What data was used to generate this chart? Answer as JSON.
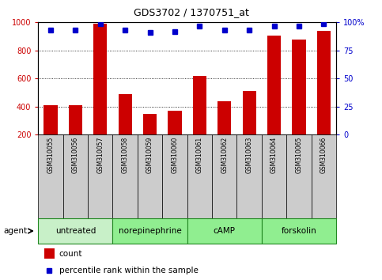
{
  "title": "GDS3702 / 1370751_at",
  "samples": [
    "GSM310055",
    "GSM310056",
    "GSM310057",
    "GSM310058",
    "GSM310059",
    "GSM310060",
    "GSM310061",
    "GSM310062",
    "GSM310063",
    "GSM310064",
    "GSM310065",
    "GSM310066"
  ],
  "counts": [
    410,
    410,
    990,
    490,
    348,
    368,
    615,
    435,
    510,
    905,
    875,
    940
  ],
  "percentile_ranks": [
    93,
    93,
    99,
    93,
    91,
    92,
    97,
    93,
    93,
    97,
    97,
    99
  ],
  "groups": [
    {
      "label": "untreated",
      "start": 0,
      "end": 3,
      "color": "#c8f0c8"
    },
    {
      "label": "norepinephrine",
      "start": 3,
      "end": 6,
      "color": "#90ee90"
    },
    {
      "label": "cAMP",
      "start": 6,
      "end": 9,
      "color": "#90ee90"
    },
    {
      "label": "forskolin",
      "start": 9,
      "end": 12,
      "color": "#90ee90"
    }
  ],
  "bar_color": "#cc0000",
  "dot_color": "#0000cc",
  "ylim_left": [
    200,
    1000
  ],
  "ylim_right": [
    0,
    100
  ],
  "yticks_left": [
    200,
    400,
    600,
    800,
    1000
  ],
  "yticks_right": [
    0,
    25,
    50,
    75,
    100
  ],
  "grid_color": "#000000",
  "tick_label_color_left": "#cc0000",
  "tick_label_color_right": "#0000cc",
  "legend_count_label": "count",
  "legend_percentile_label": "percentile rank within the sample",
  "agent_label": "agent",
  "sample_bg_color": "#cccccc",
  "group_border_color": "#228822",
  "fig_width": 4.83,
  "fig_height": 3.54,
  "dpi": 100
}
